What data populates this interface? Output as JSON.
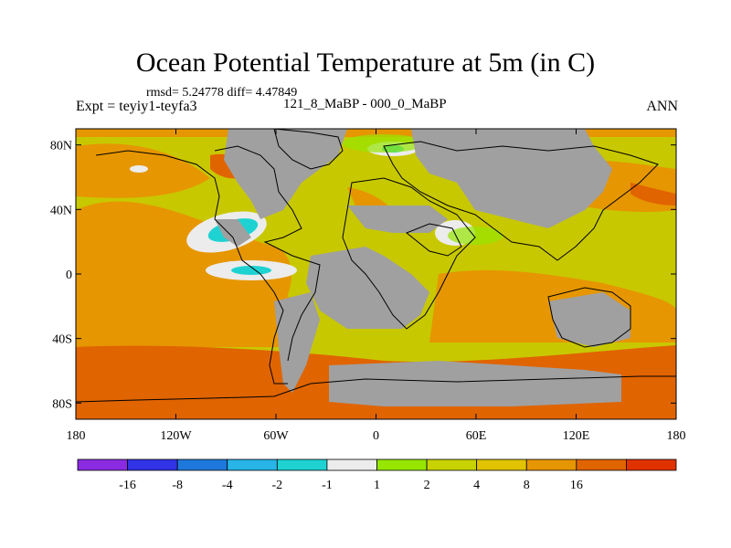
{
  "title": "Ocean Potential Temperature at 5m (in C)",
  "stats": "rmsd= 5.24778 diff= 4.47849",
  "experiment": "Expt = teyiy1-teyfa3",
  "case": "121_8_MaBP - 000_0_MaBP",
  "season": "ANN",
  "axes": {
    "lat_labels": [
      "80N",
      "40N",
      "0",
      "40S",
      "80S"
    ],
    "lat_values": [
      80,
      40,
      0,
      -40,
      -80
    ],
    "lon_labels": [
      "180",
      "120W",
      "60W",
      "0",
      "60E",
      "120E",
      "180"
    ],
    "lon_values": [
      -180,
      -120,
      -60,
      0,
      60,
      120,
      180
    ],
    "lat_range": [
      -90,
      90
    ],
    "lon_range": [
      -180,
      180
    ]
  },
  "colorbar": {
    "colors": [
      "#8a2be2",
      "#3232e6",
      "#1e78dc",
      "#28b4e6",
      "#1ed2d2",
      "#ececec",
      "#96e600",
      "#c8d200",
      "#e1c300",
      "#e69600",
      "#e06400",
      "#e03200"
    ],
    "labels": [
      "-16",
      "-8",
      "-4",
      "-2",
      "-1",
      "1",
      "2",
      "4",
      "8",
      "16"
    ]
  },
  "colors": {
    "land": "#a0a0a0",
    "warm": "#e69600",
    "hot": "#e06400",
    "mild": "#c8c800",
    "neutral": "#ececec",
    "cool": "#1ed2d2"
  }
}
